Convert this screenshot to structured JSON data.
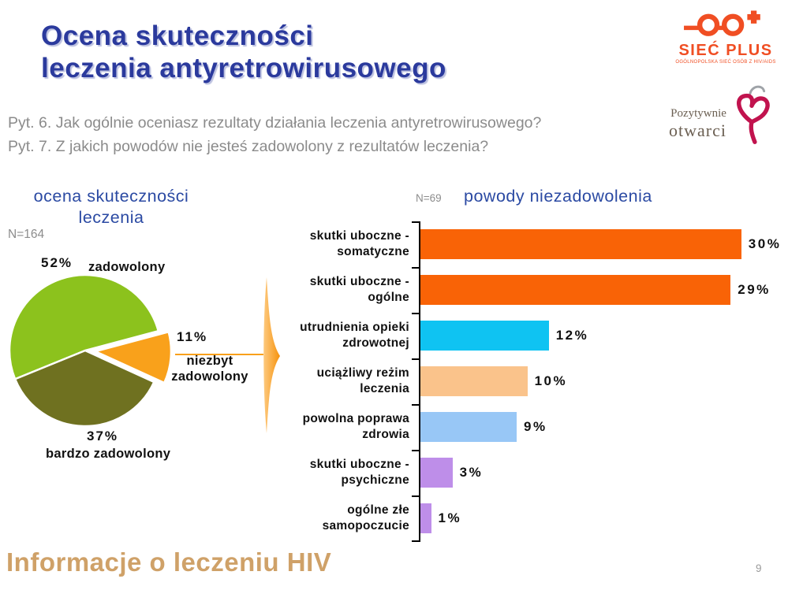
{
  "slide": {
    "title_line1": "Ocena skuteczności",
    "title_line2": "leczenia antyretrowirusowego",
    "question1": "Pyt. 6. Jak ogólnie oceniasz rezultaty działania leczenia antyretrowirusowego?",
    "question2": "Pyt. 7. Z jakich powodów nie jesteś zadowolony z rezultatów leczenia?",
    "footer": "Informacje o leczeniu HIV",
    "page_number": "9",
    "title_color": "#2b3a9d",
    "footer_color": "#cfa168"
  },
  "logos": {
    "siec_plus": {
      "icon": "glasses-plus-icon",
      "name": "SIEĆ PLUS",
      "caption": "OGÓLNOPOLSKA SIEĆ OSÓB Z HIV/AIDS",
      "color": "#f04e23"
    },
    "pozytywnie_otwarci": {
      "icon": "heart-ribbon-icon",
      "line1": "Pozytywnie",
      "line2": "otwarci",
      "heart_color": "#c1134e",
      "text_color": "#6b5f52"
    }
  },
  "chart_data": [
    {
      "type": "pie",
      "title": "ocena skuteczności leczenia",
      "title_line1": "ocena skuteczności",
      "title_line2": "leczenia",
      "n_label": "N=164",
      "start_angle_deg": 15,
      "slices": [
        {
          "label": "zadowolony",
          "value": 52,
          "value_label": "52%",
          "color": "#8cc21d",
          "explode": false
        },
        {
          "label": "bardzo zadowolony",
          "value": 37,
          "value_label": "37%",
          "color": "#6f7120",
          "explode": false
        },
        {
          "label": "niezbyt zadowolony",
          "label_lines": [
            "niezbyt",
            "zadowolony"
          ],
          "value": 11,
          "value_label": "11%",
          "color": "#f9a11b",
          "explode": true
        }
      ]
    },
    {
      "type": "bar",
      "orientation": "horizontal",
      "title": "powody niezadowolenia",
      "n_label": "N=69",
      "xlim": [
        0,
        33
      ],
      "categories": [
        "skutki uboczne - somatyczne",
        "skutki uboczne - ogólne",
        "utrudnienia opieki zdrowotnej",
        "uciążliwy reżim leczenia",
        "powolna poprawa zdrowia",
        "skutki uboczne - psychiczne",
        "ogólne złe samopoczucie"
      ],
      "values": [
        30,
        29,
        12,
        10,
        9,
        3,
        1
      ],
      "bars": [
        {
          "line1": "skutki uboczne -",
          "line2": "somatyczne",
          "value": 30,
          "value_label": "30%",
          "color": "#f96306"
        },
        {
          "line1": "skutki uboczne -",
          "line2": "ogólne",
          "value": 29,
          "value_label": "29%",
          "color": "#f96306"
        },
        {
          "line1": "utrudnienia opieki",
          "line2": "zdrowotnej",
          "value": 12,
          "value_label": "12%",
          "color": "#0fc3f2"
        },
        {
          "line1": "uciążliwy reżim",
          "line2": "leczenia",
          "value": 10,
          "value_label": "10%",
          "color": "#fac38b"
        },
        {
          "line1": "powolna poprawa",
          "line2": "zdrowia",
          "value": 9,
          "value_label": "9%",
          "color": "#98c7f6"
        },
        {
          "line1": "skutki uboczne -",
          "line2": "psychiczne",
          "value": 3,
          "value_label": "3%",
          "color": "#be8ee9"
        },
        {
          "line1": "ogólne złe",
          "line2": "samopoczucie",
          "value": 1,
          "value_label": "1%",
          "color": "#be8ee9"
        }
      ]
    }
  ]
}
